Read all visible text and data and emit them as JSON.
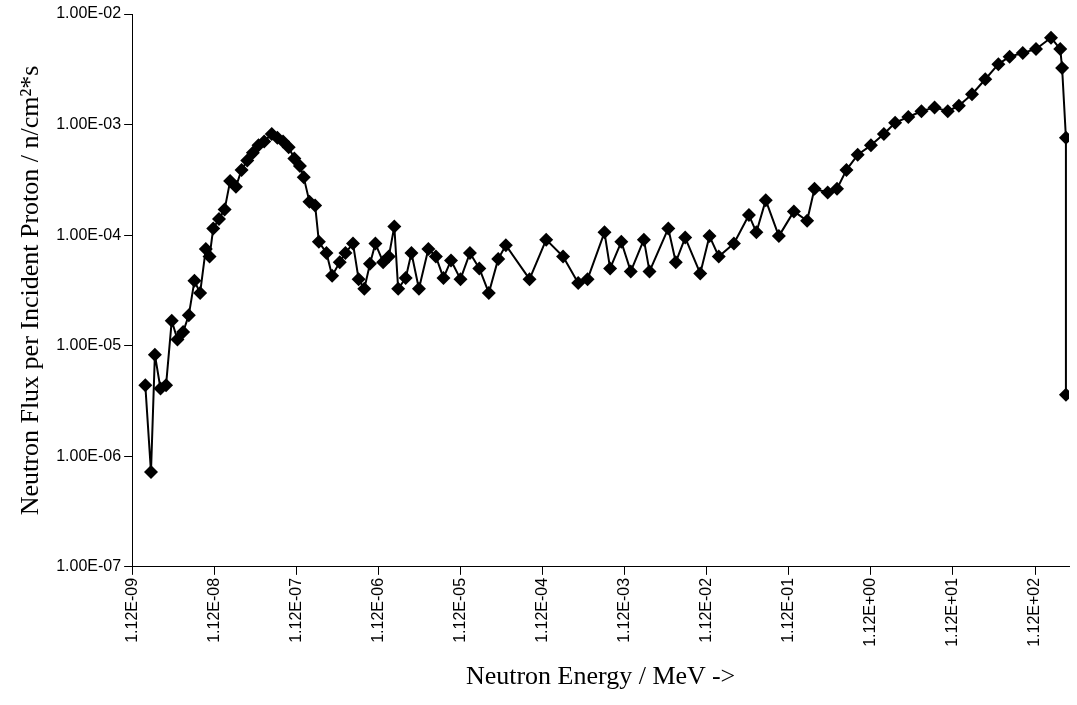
{
  "chart_data": {
    "type": "line",
    "xlabel": "Neutron Energy / MeV ->",
    "ylabel": "Neutron Flux per Incident Proton / n/cm²*s",
    "log": "xy",
    "grid": false,
    "legend": false,
    "marker": "diamond",
    "line_style": "solid",
    "xlim": [
      1.12e-09,
      290
    ],
    "ylim": [
      1e-07,
      0.01
    ],
    "xticks": [
      {
        "value": 1.12e-09,
        "label": "1.12E-09"
      },
      {
        "value": 1.12e-08,
        "label": "1.12E-08"
      },
      {
        "value": 1.12e-07,
        "label": "1.12E-07"
      },
      {
        "value": 1.12e-06,
        "label": "1.12E-06"
      },
      {
        "value": 1.12e-05,
        "label": "1.12E-05"
      },
      {
        "value": 0.000112,
        "label": "1.12E-04"
      },
      {
        "value": 0.00112,
        "label": "1.12E-03"
      },
      {
        "value": 0.0112,
        "label": "1.12E-02"
      },
      {
        "value": 0.112,
        "label": "1.12E-01"
      },
      {
        "value": 1.12,
        "label": "1.12E+00"
      },
      {
        "value": 11.2,
        "label": "1.12E+01"
      },
      {
        "value": 112,
        "label": "1.12E+02"
      }
    ],
    "yticks": [
      {
        "value": 1e-07,
        "label": "1.00E-07"
      },
      {
        "value": 1e-06,
        "label": "1.00E-06"
      },
      {
        "value": 1e-05,
        "label": "1.00E-05"
      },
      {
        "value": 0.0001,
        "label": "1.00E-04"
      },
      {
        "value": 0.001,
        "label": "1.00E-03"
      },
      {
        "value": 0.01,
        "label": "1.00E-02"
      }
    ],
    "series": [
      {
        "color": "#000000",
        "x": [
          1.62e-09,
          1.9e-09,
          2.12e-09,
          2.48e-09,
          2.9e-09,
          3.4e-09,
          3.99e-09,
          4.68e-09,
          5.49e-09,
          6.43e-09,
          7.54e-09,
          8.84e-09,
          9.82e-09,
          1.09e-08,
          1.28e-08,
          1.5e-08,
          1.75e-08,
          2.06e-08,
          2.41e-08,
          2.83e-08,
          3.31e-08,
          3.88e-08,
          4.55e-08,
          5.62e-08,
          6.59e-08,
          7.72e-08,
          9.05e-08,
          1.06e-07,
          1.24e-07,
          1.38e-07,
          1.62e-07,
          1.9e-07,
          2.11e-07,
          2.61e-07,
          3.06e-07,
          3.79e-07,
          4.44e-07,
          5.49e-07,
          6.43e-07,
          7.54e-07,
          8.84e-07,
          1.03e-06,
          1.28e-06,
          1.5e-06,
          1.75e-06,
          1.95e-06,
          2.41e-06,
          2.83e-06,
          3.49e-06,
          4.55e-06,
          5.62e-06,
          6.95e-06,
          8.59e-06,
          1.12e-05,
          1.46e-05,
          1.9e-05,
          2.48e-05,
          3.23e-05,
          4e-05,
          7.77e-05,
          0.000124,
          0.000199,
          0.000304,
          0.000396,
          0.000636,
          0.000745,
          0.00102,
          0.00133,
          0.00192,
          0.00225,
          0.00381,
          0.0047,
          0.00612,
          0.00933,
          0.0121,
          0.0157,
          0.024,
          0.0366,
          0.0451,
          0.0586,
          0.0847,
          0.129,
          0.187,
          0.23,
          0.333,
          0.433,
          0.564,
          0.773,
          1.12,
          1.61,
          2.21,
          3.2,
          4.62,
          6.68,
          9.66,
          13.2,
          19.1,
          27.7,
          40.0,
          54.8,
          79.3,
          115,
          175,
          227,
          239,
          266,
          266
        ],
        "values": [
          4.4e-06,
          7.2e-07,
          8.3e-06,
          4.1e-06,
          4.4e-06,
          1.68e-05,
          1.14e-05,
          1.33e-05,
          1.89e-05,
          3.86e-05,
          3e-05,
          7.5e-05,
          6.4e-05,
          0.000115,
          0.00014,
          0.000171,
          0.000308,
          0.000274,
          0.000389,
          0.000474,
          0.000555,
          0.000649,
          0.000702,
          0.000822,
          0.00076,
          0.000702,
          0.000624,
          0.000493,
          0.000422,
          0.000333,
          0.0002,
          0.000185,
          8.7e-05,
          6.9e-05,
          4.3e-05,
          5.7e-05,
          6.9e-05,
          8.4e-05,
          4e-05,
          3.27e-05,
          5.5e-05,
          8.4e-05,
          5.7e-05,
          6.4e-05,
          0.00012,
          3.27e-05,
          4.1e-05,
          6.9e-05,
          3.27e-05,
          7.5e-05,
          6.4e-05,
          4.1e-05,
          5.9e-05,
          4e-05,
          6.9e-05,
          5e-05,
          3e-05,
          6.1e-05,
          8.1e-05,
          4e-05,
          9.1e-05,
          6.4e-05,
          3.7e-05,
          4e-05,
          0.000106,
          5e-05,
          8.7e-05,
          4.7e-05,
          9.1e-05,
          4.7e-05,
          0.000115,
          5.7e-05,
          9.5e-05,
          4.5e-05,
          9.8e-05,
          6.4e-05,
          8.4e-05,
          0.000152,
          0.000106,
          0.000207,
          9.8e-05,
          0.000164,
          0.000135,
          0.000263,
          0.000243,
          0.000263,
          0.000389,
          0.000533,
          0.000649,
          0.000822,
          0.00104,
          0.00117,
          0.00132,
          0.00143,
          0.00132,
          0.00148,
          0.00188,
          0.00257,
          0.00352,
          0.00411,
          0.00445,
          0.00482,
          0.0061,
          0.00482,
          0.00325,
          0.00076,
          3.6e-06
        ]
      }
    ]
  }
}
